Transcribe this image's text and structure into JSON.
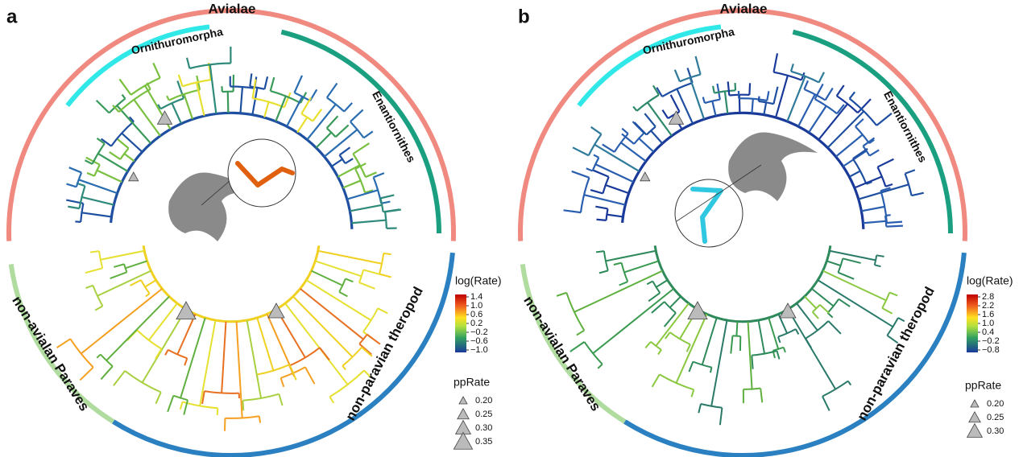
{
  "panels": [
    {
      "label": "a",
      "clades": [
        "Avialae",
        "Ornithuromorpha",
        "Enantiornithes",
        "non-avialan Paraves",
        "non-paravian theropod"
      ],
      "color_legend": {
        "title": "log(Rate)",
        "ticks": [
          "1.4",
          "1.0",
          "0.6",
          "0.2",
          "−0.2",
          "−0.6",
          "−1.0"
        ]
      },
      "size_legend": {
        "title": "ppRate",
        "ticks": [
          "0.20",
          "0.25",
          "0.30",
          "0.35"
        ]
      }
    },
    {
      "label": "b",
      "clades": [
        "Avialae",
        "Ornithuromorpha",
        "Enantiornithes",
        "non-avialan Paraves",
        "non-paravian theropod"
      ],
      "color_legend": {
        "title": "log(Rate)",
        "ticks": [
          "2.8",
          "2.2",
          "1.6",
          "1.0",
          "0.4",
          "−0.2",
          "−0.8"
        ]
      },
      "size_legend": {
        "title": "ppRate",
        "ticks": [
          "0.20",
          "0.25",
          "0.30"
        ]
      }
    }
  ]
}
